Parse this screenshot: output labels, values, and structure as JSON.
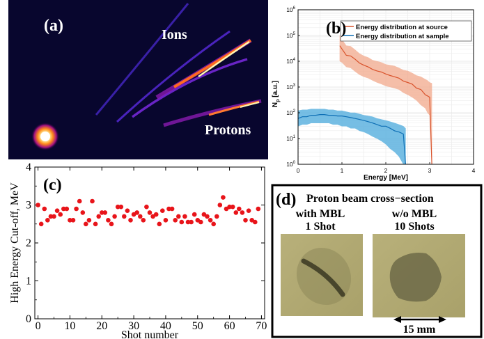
{
  "panel_a": {
    "label": "(a)",
    "ions_label": "Ions",
    "protons_label": "Protons"
  },
  "panel_d": {
    "label": "(d)",
    "title": "Proton beam cross−section",
    "left_caption_1": "with MBL",
    "left_caption_2": "1 Shot",
    "right_caption_1": "w/o MBL",
    "right_caption_2": "10 Shots",
    "scale_label": "15 mm"
  },
  "chart_data": [
    {
      "type": "area",
      "panel_label": "(b)",
      "xlabel": "Energy [MeV]",
      "ylabel_main": "N",
      "ylabel_sub": "p",
      "ylabel_unit": " [a.u.]",
      "xlim": [
        0,
        4
      ],
      "ylim_log10": [
        0,
        6
      ],
      "yscale": "log",
      "x_ticks": [
        "0",
        "1",
        "2",
        "3",
        "4"
      ],
      "y_tick_exponents": [
        "0",
        "1",
        "2",
        "3",
        "4",
        "5",
        "6"
      ],
      "grid": true,
      "legend_position": "top-right",
      "colors": {
        "source": "#d9532c",
        "source_band": "#f2a98c",
        "sample": "#0e6fb5",
        "sample_band": "#5fb3e0"
      },
      "series": [
        {
          "name": "Energy distribution at source",
          "x": [
            0.95,
            1.0,
            1.1,
            1.2,
            1.3,
            1.4,
            1.5,
            1.6,
            1.7,
            1.8,
            1.9,
            2.0,
            2.1,
            2.2,
            2.3,
            2.4,
            2.5,
            2.6,
            2.7,
            2.8,
            2.9,
            2.95,
            3.0,
            3.05
          ],
          "y": [
            40000,
            30000,
            17000,
            16000,
            12000,
            8500,
            7000,
            6000,
            4800,
            4200,
            3800,
            3200,
            2800,
            2500,
            2200,
            1700,
            1500,
            1300,
            900,
            800,
            500,
            450,
            400,
            1
          ],
          "y_upper": [
            100000,
            70000,
            40000,
            38000,
            28000,
            20000,
            16000,
            14000,
            11000,
            10000,
            9000,
            7500,
            7000,
            6500,
            5500,
            4500,
            4200,
            3500,
            2800,
            2500,
            2000,
            1800,
            1500,
            1400
          ],
          "y_lower": [
            10000,
            9000,
            6000,
            5500,
            4000,
            3000,
            2500,
            2200,
            1800,
            1500,
            1300,
            1100,
            1000,
            900,
            800,
            600,
            500,
            400,
            300,
            200,
            150,
            100,
            80,
            1
          ]
        },
        {
          "name": "Energy distribution at sample",
          "x": [
            0.0,
            0.1,
            0.2,
            0.3,
            0.4,
            0.5,
            0.6,
            0.7,
            0.8,
            0.9,
            1.0,
            1.1,
            1.2,
            1.3,
            1.4,
            1.5,
            1.6,
            1.7,
            1.8,
            1.9,
            2.0,
            2.1,
            2.2,
            2.3,
            2.4,
            2.45
          ],
          "y": [
            60,
            70,
            70,
            80,
            80,
            85,
            85,
            80,
            80,
            75,
            75,
            70,
            65,
            60,
            55,
            50,
            45,
            40,
            35,
            30,
            30,
            25,
            20,
            18,
            15,
            1
          ],
          "y_upper": [
            120,
            130,
            130,
            140,
            140,
            140,
            140,
            130,
            130,
            120,
            120,
            110,
            100,
            100,
            90,
            80,
            75,
            70,
            60,
            55,
            50,
            45,
            40,
            35,
            30,
            25
          ],
          "y_lower": [
            30,
            35,
            35,
            40,
            40,
            40,
            40,
            40,
            35,
            35,
            30,
            30,
            25,
            25,
            20,
            18,
            15,
            12,
            10,
            8,
            6,
            4,
            3,
            2,
            1,
            1
          ]
        }
      ]
    },
    {
      "type": "scatter",
      "panel_label": "(c)",
      "xlabel": "Shot number",
      "ylabel": "High Energy Cut-off, MeV",
      "xlim": [
        -1,
        71
      ],
      "ylim": [
        0,
        4
      ],
      "x_ticks": [
        "0",
        "10",
        "20",
        "30",
        "40",
        "50",
        "60",
        "70"
      ],
      "y_ticks": [
        "0",
        "1",
        "2",
        "3",
        "4"
      ],
      "color": "#e8141a",
      "x": [
        0,
        1,
        2,
        3,
        4,
        5,
        6,
        7,
        8,
        9,
        10,
        11,
        12,
        13,
        14,
        15,
        16,
        17,
        18,
        19,
        20,
        21,
        22,
        23,
        24,
        25,
        26,
        27,
        28,
        29,
        30,
        31,
        32,
        33,
        34,
        35,
        36,
        37,
        38,
        39,
        40,
        41,
        42,
        43,
        44,
        45,
        46,
        47,
        48,
        49,
        50,
        51,
        52,
        53,
        54,
        55,
        56,
        57,
        58,
        59,
        60,
        61,
        62,
        63,
        64,
        65,
        66,
        67,
        68,
        69
      ],
      "y": [
        3.0,
        2.5,
        2.9,
        2.6,
        2.7,
        2.7,
        2.85,
        2.75,
        2.9,
        2.9,
        2.6,
        2.6,
        2.9,
        3.1,
        2.8,
        2.5,
        2.6,
        3.1,
        2.5,
        2.7,
        2.8,
        2.8,
        2.6,
        2.5,
        2.7,
        2.95,
        2.95,
        2.7,
        2.85,
        2.6,
        2.75,
        2.8,
        2.7,
        2.6,
        2.95,
        2.8,
        2.7,
        2.75,
        2.5,
        2.85,
        2.6,
        2.9,
        2.9,
        2.6,
        2.7,
        2.55,
        2.7,
        2.55,
        2.55,
        2.75,
        2.6,
        2.55,
        2.75,
        2.7,
        2.6,
        2.5,
        2.7,
        3.0,
        3.2,
        2.9,
        2.95,
        2.95,
        2.8,
        2.9,
        2.8,
        2.6,
        2.85,
        2.6,
        2.55,
        2.9
      ]
    }
  ]
}
